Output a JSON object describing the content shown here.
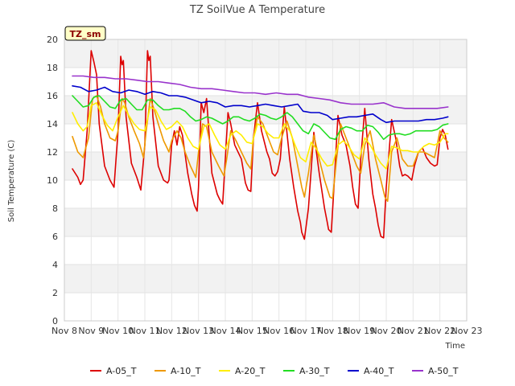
{
  "chart_data": {
    "type": "line",
    "title": "TZ SoilVue A Temperature",
    "xlabel": "Time",
    "ylabel": "Soil Temperature (C)",
    "site_tag": "TZ_sm",
    "ylim": [
      0,
      20
    ],
    "yticks": [
      0,
      2,
      4,
      6,
      8,
      10,
      12,
      14,
      16,
      18,
      20
    ],
    "xlim": [
      8,
      23
    ],
    "xtick_values": [
      8,
      9,
      10,
      11,
      12,
      13,
      14,
      15,
      16,
      17,
      18,
      19,
      20,
      21,
      22,
      23
    ],
    "xtick_labels": [
      "Nov 8",
      "Nov 9",
      "Nov 10",
      "Nov 11",
      "Nov 12",
      "Nov 13",
      "Nov 14",
      "Nov 15",
      "Nov 16",
      "Nov 17",
      "Nov 18",
      "Nov 19",
      "Nov 20",
      "Nov 21",
      "Nov 22",
      "Nov 23"
    ],
    "series": [
      {
        "name": "A-05_T",
        "color": "#dd0000",
        "x": [
          8.3,
          8.5,
          8.6,
          8.7,
          8.85,
          9.0,
          9.1,
          9.2,
          9.3,
          9.5,
          9.7,
          9.85,
          10.0,
          10.1,
          10.15,
          10.2,
          10.3,
          10.5,
          10.7,
          10.85,
          11.0,
          11.1,
          11.15,
          11.2,
          11.3,
          11.5,
          11.7,
          11.85,
          11.9,
          12.0,
          12.1,
          12.2,
          12.3,
          12.4,
          12.6,
          12.75,
          12.85,
          12.95,
          13.0,
          13.1,
          13.2,
          13.3,
          13.5,
          13.7,
          13.8,
          13.9,
          14.0,
          14.1,
          14.2,
          14.35,
          14.6,
          14.75,
          14.85,
          14.95,
          15.05,
          15.2,
          15.35,
          15.55,
          15.65,
          15.75,
          15.85,
          15.95,
          16.05,
          16.2,
          16.4,
          16.55,
          16.7,
          16.8,
          16.85,
          16.95,
          17.1,
          17.3,
          17.5,
          17.7,
          17.8,
          17.85,
          17.95,
          18.05,
          18.2,
          18.35,
          18.5,
          18.65,
          18.75,
          18.85,
          18.95,
          19.05,
          19.2,
          19.35,
          19.5,
          19.6,
          19.7,
          19.8,
          19.9,
          20.0,
          20.2,
          20.35,
          20.5,
          20.6,
          20.7,
          20.8,
          20.95,
          21.05,
          21.2,
          21.35,
          21.5,
          21.65,
          21.8,
          21.9,
          22.0,
          22.1,
          22.2,
          22.3
        ],
        "y": [
          10.8,
          10.2,
          9.7,
          10.0,
          13.5,
          19.2,
          18.4,
          17.5,
          14.0,
          11.0,
          10.0,
          9.5,
          13.5,
          18.8,
          18.2,
          18.5,
          14.5,
          11.2,
          10.2,
          9.3,
          12.5,
          19.2,
          18.5,
          18.8,
          14.5,
          11.0,
          10.0,
          9.8,
          10.0,
          12.5,
          13.5,
          12.5,
          13.8,
          13.2,
          10.5,
          9.0,
          8.2,
          7.8,
          9.5,
          15.5,
          14.8,
          15.8,
          10.5,
          9.0,
          8.6,
          8.3,
          11.5,
          14.8,
          14.0,
          12.5,
          11.5,
          9.8,
          9.3,
          9.2,
          13.0,
          15.5,
          13.5,
          12.0,
          11.5,
          10.5,
          10.3,
          10.6,
          11.5,
          15.2,
          11.5,
          9.5,
          7.8,
          7.0,
          6.3,
          5.8,
          8.0,
          13.4,
          10.5,
          8.0,
          7.0,
          6.5,
          6.3,
          9.5,
          14.6,
          13.2,
          12.5,
          11.0,
          9.5,
          8.3,
          8.0,
          11.5,
          15.1,
          11.5,
          9.0,
          8.0,
          6.8,
          6.0,
          5.9,
          9.5,
          14.3,
          13.0,
          11.0,
          10.3,
          10.4,
          10.3,
          10.0,
          11.0,
          12.0,
          12.3,
          11.6,
          11.2,
          11.0,
          11.1,
          13.0,
          13.6,
          13.2,
          12.2
        ]
      },
      {
        "name": "A-10_T",
        "color": "#ee9900",
        "x": [
          8.3,
          8.5,
          8.7,
          8.9,
          9.05,
          9.2,
          9.35,
          9.5,
          9.7,
          9.9,
          10.0,
          10.15,
          10.25,
          10.4,
          10.6,
          10.8,
          10.95,
          11.05,
          11.2,
          11.35,
          11.5,
          11.7,
          11.9,
          12.0,
          12.2,
          12.35,
          12.5,
          12.7,
          12.9,
          13.0,
          13.15,
          13.3,
          13.5,
          13.75,
          13.95,
          14.05,
          14.2,
          14.4,
          14.6,
          14.8,
          14.95,
          15.05,
          15.2,
          15.4,
          15.6,
          15.8,
          15.95,
          16.1,
          16.3,
          16.5,
          16.7,
          16.85,
          16.95,
          17.1,
          17.3,
          17.5,
          17.7,
          17.9,
          18.0,
          18.15,
          18.3,
          18.5,
          18.7,
          18.9,
          19.05,
          19.2,
          19.4,
          19.6,
          19.8,
          19.95,
          20.05,
          20.2,
          20.4,
          20.6,
          20.8,
          21.0,
          21.2,
          21.4,
          21.6,
          21.8,
          21.9,
          22.0,
          22.15,
          22.3
        ],
        "y": [
          13.1,
          12.0,
          11.6,
          13.0,
          15.8,
          16.0,
          15.2,
          14.0,
          13.0,
          12.8,
          13.5,
          15.8,
          15.5,
          14.5,
          13.5,
          12.6,
          11.6,
          13.5,
          15.8,
          15.0,
          14.0,
          12.8,
          12.0,
          12.8,
          13.5,
          13.0,
          12.0,
          11.0,
          10.2,
          12.0,
          14.0,
          13.8,
          12.0,
          11.0,
          10.3,
          11.5,
          13.5,
          12.8,
          12.0,
          11.2,
          10.8,
          13.0,
          14.5,
          14.0,
          13.0,
          12.0,
          11.8,
          13.0,
          14.2,
          13.0,
          11.0,
          9.5,
          8.8,
          10.5,
          13.2,
          11.5,
          10.0,
          8.8,
          8.7,
          11.5,
          14.0,
          13.0,
          12.0,
          11.0,
          10.5,
          12.5,
          13.5,
          11.5,
          10.0,
          8.8,
          8.5,
          12.0,
          13.0,
          11.5,
          11.0,
          11.0,
          12.0,
          12.0,
          11.8,
          11.6,
          12.5,
          13.5,
          13.0,
          12.7
        ]
      },
      {
        "name": "A-20_T",
        "color": "#ffee00",
        "x": [
          8.3,
          8.5,
          8.7,
          8.85,
          9.0,
          9.2,
          9.4,
          9.6,
          9.8,
          10.0,
          10.2,
          10.4,
          10.6,
          10.8,
          11.0,
          11.2,
          11.4,
          11.6,
          11.8,
          12.0,
          12.2,
          12.4,
          12.6,
          12.8,
          13.0,
          13.2,
          13.4,
          13.6,
          13.8,
          14.0,
          14.2,
          14.4,
          14.6,
          14.8,
          15.0,
          15.2,
          15.4,
          15.6,
          15.8,
          16.0,
          16.2,
          16.4,
          16.6,
          16.8,
          17.0,
          17.2,
          17.4,
          17.6,
          17.8,
          18.0,
          18.2,
          18.4,
          18.6,
          18.8,
          19.0,
          19.2,
          19.4,
          19.6,
          19.8,
          20.0,
          20.2,
          20.4,
          20.6,
          20.8,
          21.0,
          21.2,
          21.4,
          21.6,
          21.8,
          22.0,
          22.2,
          22.3
        ],
        "y": [
          14.8,
          14.0,
          13.5,
          13.8,
          15.3,
          15.5,
          14.6,
          13.9,
          13.5,
          14.5,
          15.3,
          14.6,
          14.0,
          13.6,
          13.5,
          15.2,
          15.0,
          14.2,
          13.6,
          13.8,
          14.2,
          13.8,
          13.0,
          12.4,
          12.2,
          13.8,
          14.0,
          13.2,
          12.5,
          12.2,
          13.2,
          13.5,
          13.2,
          12.7,
          12.6,
          14.0,
          13.8,
          13.3,
          13.0,
          13.0,
          14.0,
          13.5,
          12.5,
          11.6,
          11.3,
          12.7,
          12.2,
          11.5,
          11.0,
          11.1,
          12.5,
          12.8,
          12.4,
          11.8,
          11.5,
          13.0,
          12.5,
          11.8,
          11.2,
          10.8,
          12.4,
          12.3,
          12.1,
          12.1,
          12.0,
          12.0,
          12.4,
          12.6,
          12.5,
          12.7,
          13.3,
          13.3
        ]
      },
      {
        "name": "A-30_T",
        "color": "#22dd22",
        "x": [
          8.3,
          8.5,
          8.7,
          8.9,
          9.1,
          9.3,
          9.5,
          9.7,
          9.9,
          10.1,
          10.3,
          10.5,
          10.7,
          10.9,
          11.1,
          11.3,
          11.5,
          11.7,
          11.9,
          12.1,
          12.3,
          12.5,
          12.7,
          12.9,
          13.1,
          13.3,
          13.5,
          13.7,
          13.9,
          14.1,
          14.3,
          14.5,
          14.7,
          14.9,
          15.1,
          15.3,
          15.5,
          15.7,
          15.9,
          16.1,
          16.3,
          16.5,
          16.7,
          16.9,
          17.1,
          17.3,
          17.5,
          17.7,
          17.9,
          18.1,
          18.3,
          18.5,
          18.7,
          18.9,
          19.1,
          19.3,
          19.5,
          19.7,
          19.9,
          20.1,
          20.3,
          20.5,
          20.7,
          20.9,
          21.1,
          21.3,
          21.5,
          21.7,
          21.9,
          22.1,
          22.3
        ],
        "y": [
          16.0,
          15.6,
          15.2,
          15.3,
          15.9,
          16.0,
          15.6,
          15.2,
          15.1,
          15.7,
          15.8,
          15.4,
          15.0,
          15.0,
          15.7,
          15.7,
          15.3,
          15.0,
          15.0,
          15.1,
          15.1,
          14.9,
          14.5,
          14.2,
          14.3,
          14.5,
          14.4,
          14.2,
          14.0,
          14.2,
          14.5,
          14.5,
          14.3,
          14.2,
          14.4,
          14.7,
          14.6,
          14.4,
          14.3,
          14.5,
          14.8,
          14.5,
          14.0,
          13.5,
          13.3,
          14.0,
          13.8,
          13.4,
          13.0,
          12.9,
          13.6,
          13.8,
          13.7,
          13.5,
          13.5,
          13.9,
          13.8,
          13.4,
          12.9,
          13.2,
          13.3,
          13.3,
          13.2,
          13.3,
          13.5,
          13.5,
          13.5,
          13.5,
          13.6,
          13.9,
          14.0
        ]
      },
      {
        "name": "A-40_T",
        "color": "#0000cc",
        "x": [
          8.3,
          8.6,
          8.9,
          9.2,
          9.5,
          9.8,
          10.1,
          10.4,
          10.7,
          11.0,
          11.3,
          11.6,
          11.9,
          12.2,
          12.5,
          12.8,
          13.1,
          13.4,
          13.7,
          14.0,
          14.3,
          14.6,
          14.9,
          15.2,
          15.5,
          15.8,
          16.1,
          16.4,
          16.7,
          16.9,
          17.2,
          17.5,
          17.8,
          18.0,
          18.3,
          18.6,
          18.9,
          19.2,
          19.5,
          19.8,
          20.0,
          20.3,
          20.6,
          20.9,
          21.2,
          21.5,
          21.8,
          22.1,
          22.3
        ],
        "y": [
          16.7,
          16.6,
          16.3,
          16.4,
          16.6,
          16.3,
          16.2,
          16.4,
          16.3,
          16.1,
          16.3,
          16.2,
          16.0,
          16.0,
          15.9,
          15.7,
          15.5,
          15.6,
          15.5,
          15.2,
          15.3,
          15.3,
          15.2,
          15.3,
          15.4,
          15.3,
          15.2,
          15.3,
          15.4,
          14.9,
          14.8,
          14.8,
          14.6,
          14.3,
          14.4,
          14.5,
          14.5,
          14.6,
          14.7,
          14.3,
          14.1,
          14.2,
          14.2,
          14.2,
          14.2,
          14.3,
          14.3,
          14.4,
          14.5
        ]
      },
      {
        "name": "A-50_T",
        "color": "#9933cc",
        "x": [
          8.3,
          8.7,
          9.1,
          9.5,
          9.9,
          10.3,
          10.7,
          11.1,
          11.5,
          11.9,
          12.3,
          12.7,
          13.1,
          13.5,
          13.9,
          14.3,
          14.7,
          15.1,
          15.5,
          15.9,
          16.3,
          16.7,
          17.1,
          17.5,
          17.9,
          18.3,
          18.7,
          19.1,
          19.5,
          19.9,
          20.3,
          20.7,
          21.1,
          21.5,
          21.9,
          22.3
        ],
        "y": [
          17.4,
          17.4,
          17.3,
          17.3,
          17.2,
          17.2,
          17.1,
          17.0,
          17.0,
          16.9,
          16.8,
          16.6,
          16.5,
          16.5,
          16.4,
          16.3,
          16.2,
          16.2,
          16.1,
          16.2,
          16.1,
          16.1,
          15.9,
          15.8,
          15.7,
          15.5,
          15.4,
          15.4,
          15.4,
          15.5,
          15.2,
          15.1,
          15.1,
          15.1,
          15.1,
          15.2
        ]
      }
    ]
  }
}
